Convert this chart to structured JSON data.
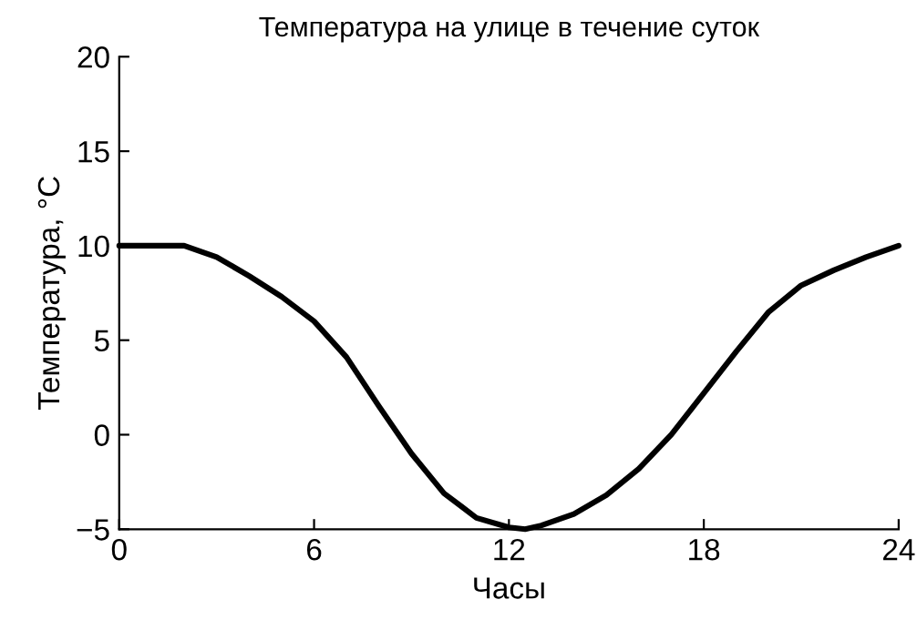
{
  "chart_data": {
    "type": "line",
    "title": "Температура на улице в течение суток",
    "xlabel": "Часы",
    "ylabel": "Температура, °C",
    "x": [
      0,
      1.5,
      2,
      3,
      4,
      5,
      6,
      7,
      8,
      9,
      10,
      11,
      12,
      12.5,
      13,
      14,
      15,
      16,
      17,
      18,
      19,
      20,
      21,
      22,
      23,
      24
    ],
    "series": [
      {
        "color": "#000000",
        "values": [
          10,
          10,
          10,
          9.4,
          8.4,
          7.3,
          6.0,
          4.1,
          1.5,
          -1.0,
          -3.1,
          -4.4,
          -4.9,
          -5.0,
          -4.8,
          -4.2,
          -3.2,
          -1.8,
          0,
          2.2,
          4.4,
          6.5,
          7.9,
          8.7,
          9.4,
          10
        ]
      }
    ],
    "xlim": [
      0,
      24
    ],
    "xticks": [
      0,
      6,
      12,
      18,
      24
    ],
    "ylim": [
      -5,
      20
    ],
    "yticks": [
      -5,
      0,
      5,
      10,
      15,
      20
    ],
    "grid": false,
    "legend": false,
    "marker": "none",
    "line_style": "solid"
  }
}
